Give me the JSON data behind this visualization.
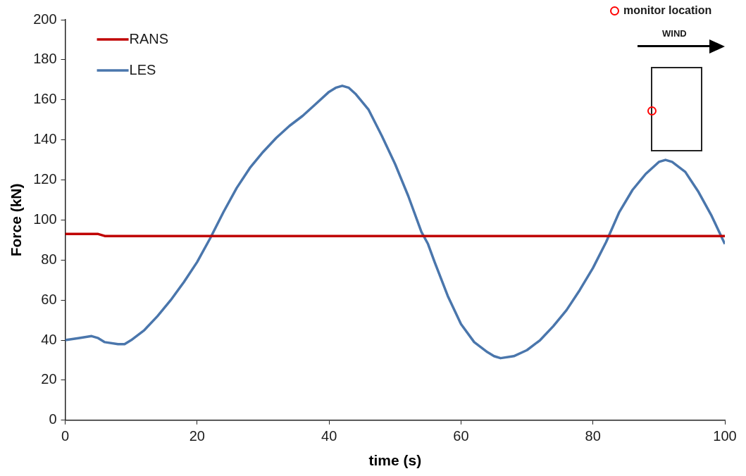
{
  "chart_data": {
    "type": "line",
    "xlabel": "time (s)",
    "ylabel": "Force (kN)",
    "xlim": [
      0,
      100
    ],
    "xticks": [
      0,
      20,
      40,
      60,
      80,
      100
    ],
    "ylim": [
      0,
      200
    ],
    "yticks": [
      0,
      20,
      40,
      60,
      80,
      100,
      120,
      140,
      160,
      180,
      200
    ],
    "grid": false,
    "legend": "top left",
    "marker": "none",
    "line_style": "solid",
    "annotations": [
      "monitor location",
      "WIND"
    ],
    "series": [
      {
        "name": "RANS",
        "color": "#c00000",
        "x": [
          0,
          5,
          6,
          22,
          100
        ],
        "values": [
          93,
          93,
          92,
          92,
          92
        ]
      },
      {
        "name": "LES",
        "color": "#4a76ac",
        "x": [
          0,
          2,
          4,
          5,
          6,
          8,
          9,
          10,
          12,
          14,
          16,
          18,
          20,
          22,
          24,
          26,
          28,
          30,
          32,
          34,
          36,
          38,
          40,
          41,
          42,
          43,
          44,
          46,
          48,
          50,
          52,
          54,
          55,
          56,
          58,
          60,
          62,
          64,
          65,
          66,
          68,
          70,
          72,
          74,
          76,
          78,
          80,
          82,
          84,
          86,
          88,
          90,
          91,
          92,
          94,
          96,
          98,
          100
        ],
        "values": [
          40,
          41,
          42,
          41,
          39,
          38,
          38,
          40,
          45,
          52,
          60,
          69,
          79,
          91,
          104,
          116,
          126,
          134,
          141,
          147,
          152,
          158,
          164,
          166,
          167,
          166,
          163,
          155,
          142,
          128,
          112,
          94,
          88,
          79,
          62,
          48,
          39,
          34,
          32,
          31,
          32,
          35,
          40,
          47,
          55,
          65,
          76,
          89,
          104,
          115,
          123,
          129,
          130,
          129,
          124,
          114,
          102,
          88
        ]
      }
    ]
  }
}
